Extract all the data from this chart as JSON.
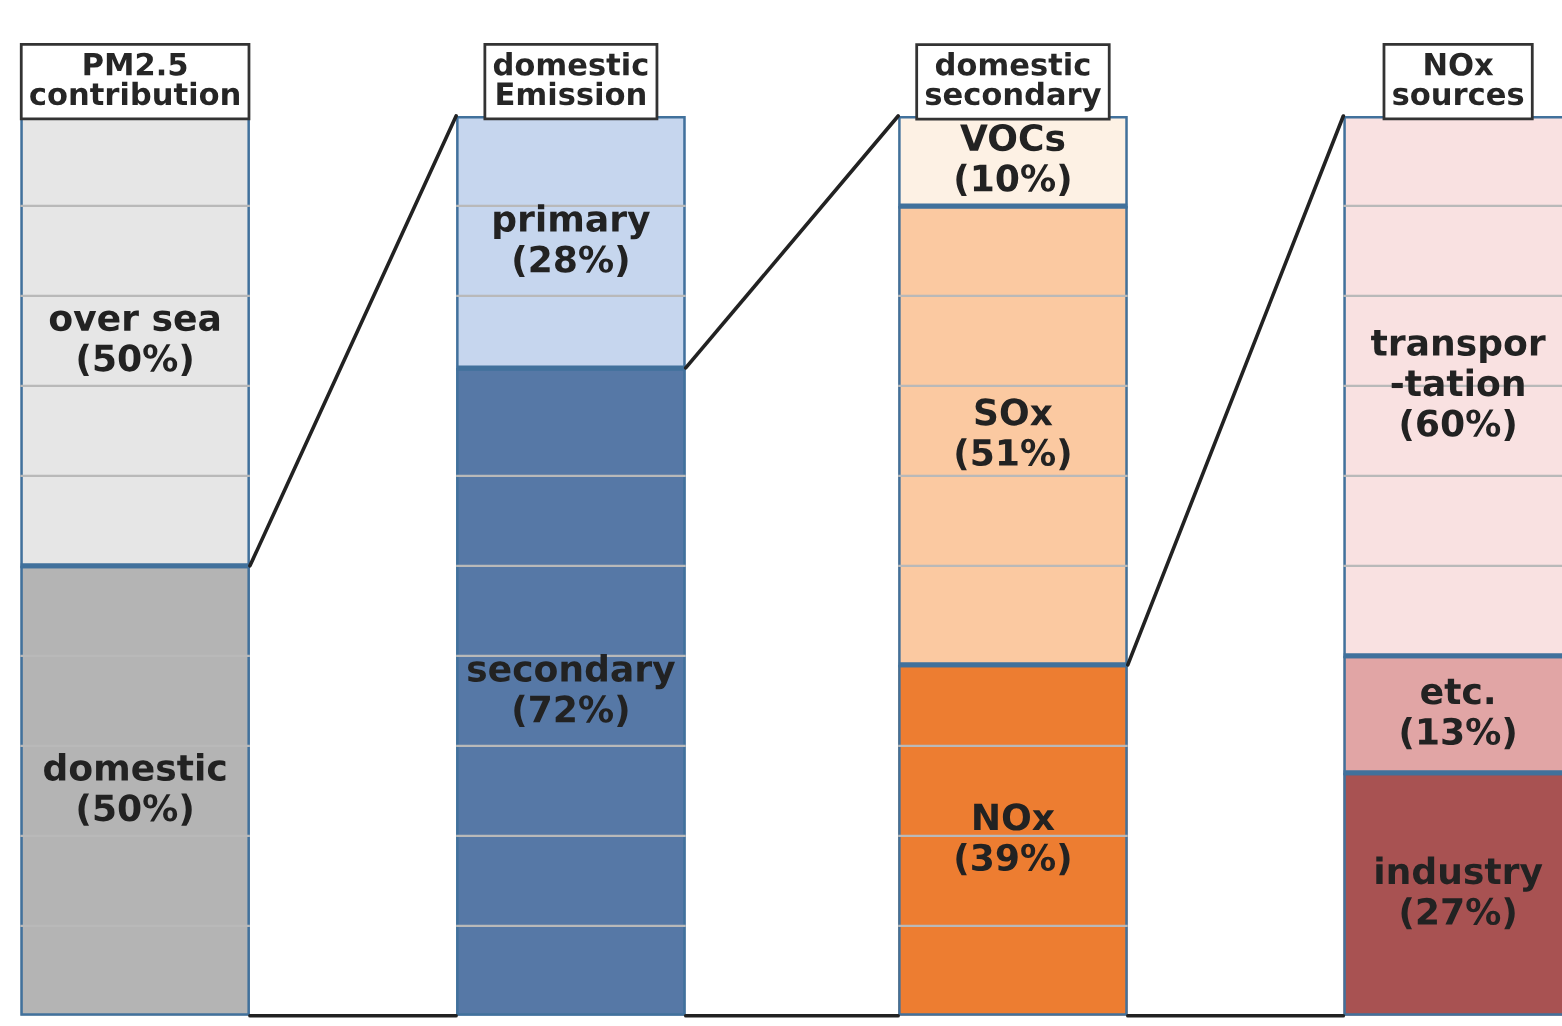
{
  "chart_data": [
    {
      "type": "bar",
      "stacked": true,
      "title": "PM2.5\ncontribution",
      "categories": [
        null
      ],
      "ylim": [
        0,
        100
      ],
      "yticks": [
        {
          "value": 10,
          "label": null
        },
        {
          "value": 20,
          "label": null
        },
        {
          "value": 30,
          "label": null
        },
        {
          "value": 40,
          "label": null
        },
        {
          "value": 60,
          "label": null
        },
        {
          "value": 70,
          "label": null
        },
        {
          "value": 80,
          "label": null
        },
        {
          "value": 90,
          "label": null
        }
      ],
      "grid": "y",
      "series": [
        {
          "name": "domestic",
          "color": "#b4b4b4",
          "values": [
            50
          ],
          "value_labels": [
            "(50%)"
          ]
        },
        {
          "name": "over sea",
          "color": "#e6e6e6",
          "values": [
            50
          ],
          "value_labels": [
            "(50%)"
          ]
        }
      ]
    },
    {
      "type": "bar",
      "stacked": true,
      "title": "domestic\nEmission",
      "categories": [
        null
      ],
      "ylim": [
        0,
        100
      ],
      "yticks": [
        {
          "value": 10,
          "label": null
        },
        {
          "value": 20,
          "label": null
        },
        {
          "value": 30,
          "label": null
        },
        {
          "value": 40,
          "label": null
        },
        {
          "value": 50,
          "label": null
        },
        {
          "value": 60,
          "label": null
        },
        {
          "value": 80,
          "label": null
        },
        {
          "value": 90,
          "label": null
        }
      ],
      "grid": "y",
      "series": [
        {
          "name": "secondary",
          "color": "#5678a6",
          "values": [
            72
          ],
          "value_labels": [
            "(72%)"
          ]
        },
        {
          "name": "primary",
          "color": "#c6d6ee",
          "values": [
            28
          ],
          "value_labels": [
            "(28%)"
          ]
        }
      ]
    },
    {
      "type": "bar",
      "stacked": true,
      "title": "domestic\nsecondary",
      "categories": [
        null
      ],
      "ylim": [
        0,
        100
      ],
      "yticks": [
        {
          "value": 10,
          "label": null
        },
        {
          "value": 20,
          "label": null
        },
        {
          "value": 30,
          "label": null
        },
        {
          "value": 50,
          "label": null
        },
        {
          "value": 60,
          "label": null
        },
        {
          "value": 70,
          "label": null
        },
        {
          "value": 80,
          "label": null
        }
      ],
      "grid": "y",
      "series": [
        {
          "name": "NOx",
          "color": "#ed7d31",
          "values": [
            39
          ],
          "value_labels": [
            "(39%)"
          ]
        },
        {
          "name": "SOx",
          "color": "#fbc9a1",
          "values": [
            51
          ],
          "value_labels": [
            "(51%)"
          ]
        },
        {
          "name": "VOCs",
          "color": "#fdf1e4",
          "values": [
            10
          ],
          "value_labels": [
            "(10%)"
          ]
        }
      ]
    },
    {
      "type": "bar",
      "stacked": true,
      "title": "NOx\nsources",
      "categories": [
        null
      ],
      "ylim": [
        0,
        100
      ],
      "yticks": [
        {
          "value": 50,
          "label": null
        },
        {
          "value": 60,
          "label": null
        },
        {
          "value": 70,
          "label": null
        },
        {
          "value": 80,
          "label": null
        },
        {
          "value": 90,
          "label": null
        }
      ],
      "grid": "y",
      "series": [
        {
          "name": "industry",
          "color": "#a85252",
          "values": [
            27
          ],
          "value_labels": [
            "(27%)"
          ]
        },
        {
          "name": "etc.",
          "color": "#e1a5a5",
          "values": [
            13
          ],
          "value_labels": [
            "(13%)"
          ]
        },
        {
          "name": "transpor\n-tation",
          "color": "#f9e1e1",
          "values": [
            60
          ],
          "value_labels": [
            "(60%)"
          ]
        }
      ]
    }
  ]
}
